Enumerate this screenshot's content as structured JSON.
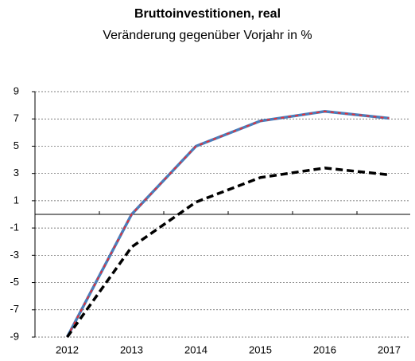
{
  "chart_data": {
    "type": "line",
    "title": "Bruttoinvestitionen, real",
    "subtitle": "Veränderung gegenüber Vorjahr in %",
    "categories": [
      "2012",
      "2013",
      "2014",
      "2015",
      "2016",
      "2017"
    ],
    "series": [
      {
        "color": "#4a7ebb",
        "overlay_color": "#e0303a",
        "dashed": false,
        "values": [
          -9,
          0,
          5,
          6.85,
          7.55,
          7.05
        ]
      },
      {
        "color": "#000000",
        "dashed": true,
        "values": [
          -9,
          -2.4,
          0.9,
          2.7,
          3.4,
          2.9
        ]
      }
    ],
    "ylim": [
      -9,
      9
    ],
    "yticks": [
      9,
      7,
      5,
      3,
      1,
      -1,
      -3,
      -5,
      -7,
      -9
    ],
    "grid": true
  }
}
